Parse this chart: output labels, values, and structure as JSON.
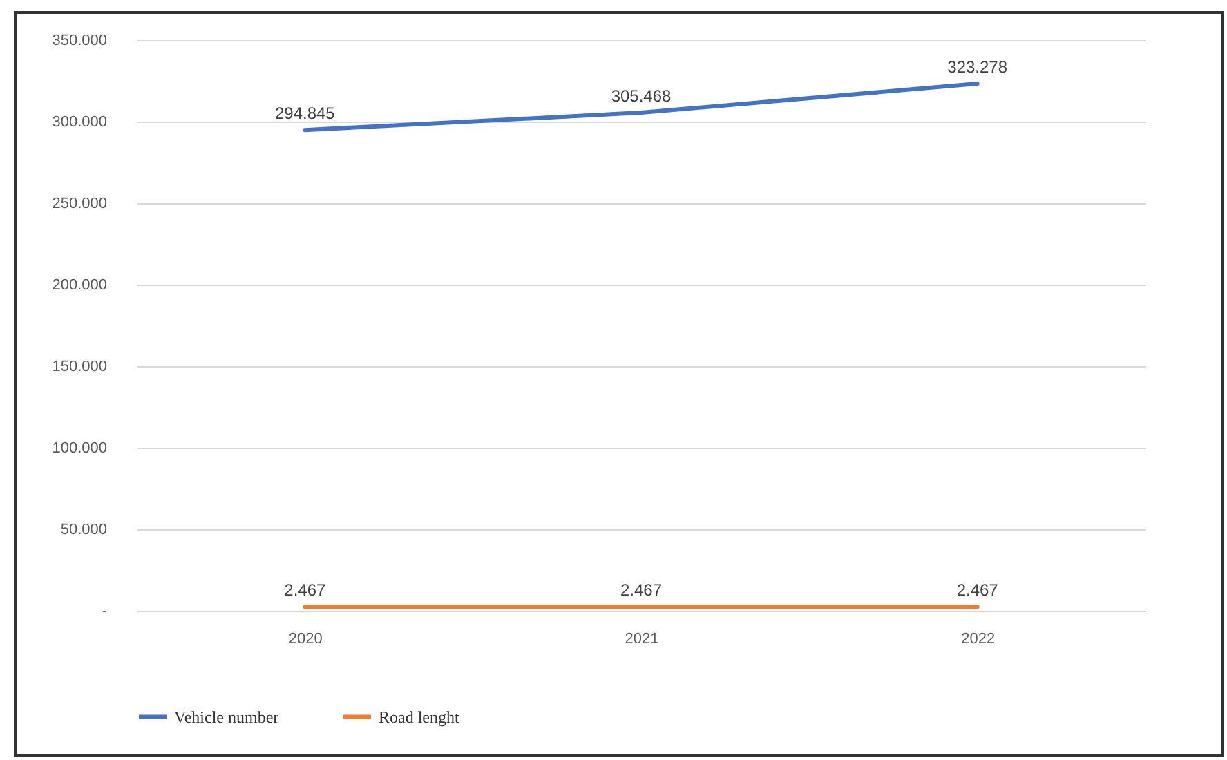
{
  "chart_data": {
    "type": "line",
    "categories": [
      "2020",
      "2021",
      "2022"
    ],
    "series": [
      {
        "name": "Vehicle number",
        "color": "#4472c4",
        "values": [
          294845,
          305468,
          323278
        ],
        "value_labels": [
          "294.845",
          "305.468",
          "323.278"
        ]
      },
      {
        "name": "Road lenght",
        "color": "#ed7d31",
        "values": [
          2467,
          2467,
          2467
        ],
        "value_labels": [
          "2.467",
          "2.467",
          "2.467"
        ]
      }
    ],
    "ylim": [
      0,
      350000
    ],
    "yticks": [
      {
        "value": 0,
        "label": "-"
      },
      {
        "value": 50000,
        "label": "50.000"
      },
      {
        "value": 100000,
        "label": "100.000"
      },
      {
        "value": 150000,
        "label": "150.000"
      },
      {
        "value": 200000,
        "label": "200.000"
      },
      {
        "value": 250000,
        "label": "250.000"
      },
      {
        "value": 300000,
        "label": "300.000"
      },
      {
        "value": 350000,
        "label": "350.000"
      }
    ],
    "grid": "y",
    "legend": "bottom",
    "marker": "none",
    "line_style": "solid"
  }
}
